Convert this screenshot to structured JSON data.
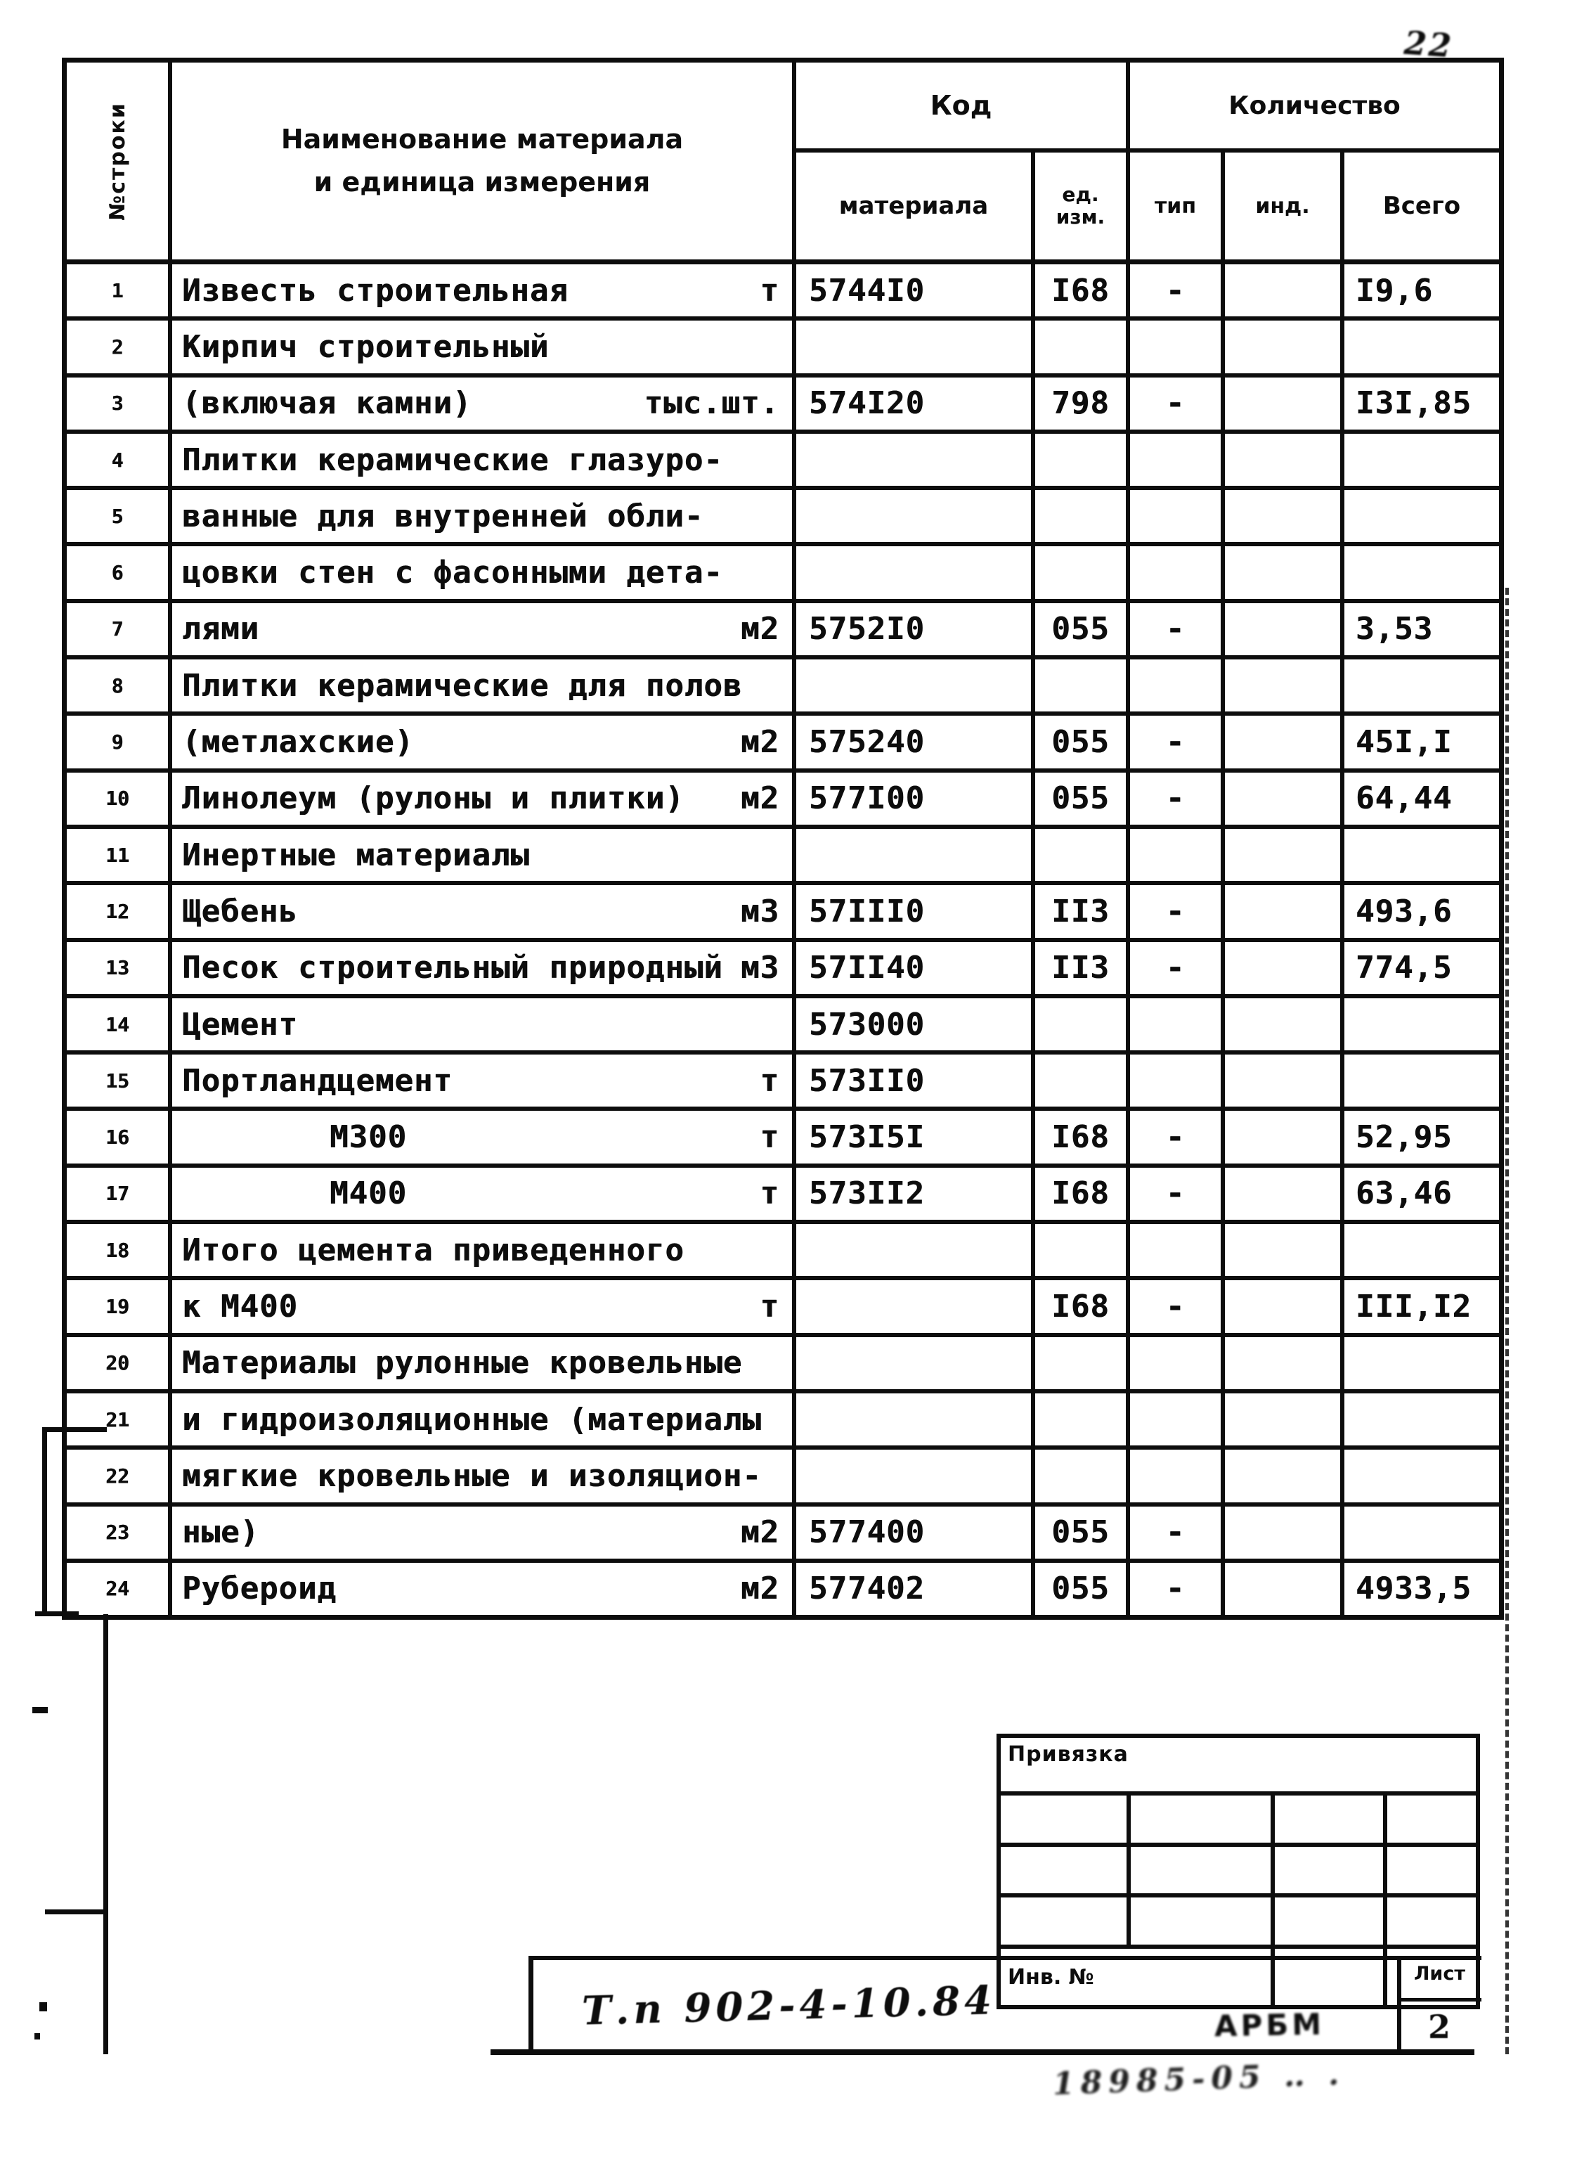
{
  "colors": {
    "ink": "#0d0d0d",
    "paper": "#ffffff"
  },
  "sheet": {
    "page_note_top_right": "22",
    "doc_number_handwritten": "Т.п 902-4-10.84",
    "stamp_text": "АРБМ",
    "bottom_handwritten_note": "18985-05 ‥ ."
  },
  "table": {
    "headers": {
      "row_no_vertical": "№строки",
      "name_line1": "Наименование материала",
      "name_line2": "и единица измерения",
      "code_group": "Код",
      "code_material": "материала",
      "code_unit_line1": "ед.",
      "code_unit_line2": "изм.",
      "qty_group": "Количество",
      "qty_tip": "тип",
      "qty_ind": "инд.",
      "qty_total": "Всего"
    },
    "rows": [
      {
        "no": "1",
        "name": "Известь строительная",
        "unit": "т",
        "code": "5744I0",
        "unit_code": "I68",
        "tip": "-",
        "ind": "",
        "total": "I9,6",
        "indent": false
      },
      {
        "no": "2",
        "name": "Кирпич строительный",
        "unit": "",
        "code": "",
        "unit_code": "",
        "tip": "",
        "ind": "",
        "total": "",
        "indent": false
      },
      {
        "no": "3",
        "name": "(включая камни)",
        "unit": "тыс.шт.",
        "code": "574I20",
        "unit_code": "798",
        "tip": "-",
        "ind": "",
        "total": "I3I,85",
        "indent": false
      },
      {
        "no": "4",
        "name": "Плитки керамические глазуро-",
        "unit": "",
        "code": "",
        "unit_code": "",
        "tip": "",
        "ind": "",
        "total": "",
        "indent": false
      },
      {
        "no": "5",
        "name": "ванные для внутренней обли-",
        "unit": "",
        "code": "",
        "unit_code": "",
        "tip": "",
        "ind": "",
        "total": "",
        "indent": false
      },
      {
        "no": "6",
        "name": "цовки стен с фасонными дета-",
        "unit": "",
        "code": "",
        "unit_code": "",
        "tip": "",
        "ind": "",
        "total": "",
        "indent": false
      },
      {
        "no": "7",
        "name": "лями",
        "unit": "м2",
        "code": "5752I0",
        "unit_code": "055",
        "tip": "-",
        "ind": "",
        "total": "3,53",
        "indent": false
      },
      {
        "no": "8",
        "name": "Плитки керамические для полов",
        "unit": "",
        "code": "",
        "unit_code": "",
        "tip": "",
        "ind": "",
        "total": "",
        "indent": false
      },
      {
        "no": "9",
        "name": "(метлахские)",
        "unit": "м2",
        "code": "575240",
        "unit_code": "055",
        "tip": "-",
        "ind": "",
        "total": "45I,I",
        "indent": false
      },
      {
        "no": "10",
        "name": "Линолеум (рулоны и плитки)",
        "unit": "м2",
        "code": "577I00",
        "unit_code": "055",
        "tip": "-",
        "ind": "",
        "total": "64,44",
        "indent": false
      },
      {
        "no": "11",
        "name": "Инертные материалы",
        "unit": "",
        "code": "",
        "unit_code": "",
        "tip": "",
        "ind": "",
        "total": "",
        "indent": false
      },
      {
        "no": "12",
        "name": "Щебень",
        "unit": "м3",
        "code": "57III0",
        "unit_code": "II3",
        "tip": "-",
        "ind": "",
        "total": "493,6",
        "indent": false
      },
      {
        "no": "13",
        "name": "Песок строительный природный",
        "unit": "м3",
        "code": "57II40",
        "unit_code": "II3",
        "tip": "-",
        "ind": "",
        "total": "774,5",
        "indent": false
      },
      {
        "no": "14",
        "name": "Цемент",
        "unit": "",
        "code": "573000",
        "unit_code": "",
        "tip": "",
        "ind": "",
        "total": "",
        "indent": false
      },
      {
        "no": "15",
        "name": "Портландцемент",
        "unit": "т",
        "code": "573II0",
        "unit_code": "",
        "tip": "",
        "ind": "",
        "total": "",
        "indent": false
      },
      {
        "no": "16",
        "name": "М300",
        "unit": "т",
        "code": "573I5I",
        "unit_code": "I68",
        "tip": "-",
        "ind": "",
        "total": "52,95",
        "indent": true
      },
      {
        "no": "17",
        "name": "М400",
        "unit": "т",
        "code": "573II2",
        "unit_code": "I68",
        "tip": "-",
        "ind": "",
        "total": "63,46",
        "indent": true
      },
      {
        "no": "18",
        "name": "Итого цемента приведенного",
        "unit": "",
        "code": "",
        "unit_code": "",
        "tip": "",
        "ind": "",
        "total": "",
        "indent": false
      },
      {
        "no": "19",
        "name": "к М400",
        "unit": "т",
        "code": "",
        "unit_code": "I68",
        "tip": "-",
        "ind": "",
        "total": "III,I2",
        "indent": false
      },
      {
        "no": "20",
        "name": "Материалы рулонные кровельные",
        "unit": "",
        "code": "",
        "unit_code": "",
        "tip": "",
        "ind": "",
        "total": "",
        "indent": false
      },
      {
        "no": "21",
        "name": "и гидроизоляционные (материалы",
        "unit": "",
        "code": "",
        "unit_code": "",
        "tip": "",
        "ind": "",
        "total": "",
        "indent": false
      },
      {
        "no": "22",
        "name": "мягкие кровельные и изоляцион-",
        "unit": "",
        "code": "",
        "unit_code": "",
        "tip": "",
        "ind": "",
        "total": "",
        "indent": false
      },
      {
        "no": "23",
        "name": "ные)",
        "unit": "м2",
        "code": "577400",
        "unit_code": "055",
        "tip": "-",
        "ind": "",
        "total": "",
        "indent": false
      },
      {
        "no": "24",
        "name": "Рубероид",
        "unit": "м2",
        "code": "577402",
        "unit_code": "055",
        "tip": "-",
        "ind": "",
        "total": "4933,5",
        "indent": false
      }
    ]
  },
  "title_block": {
    "title": "Привязка",
    "inv_label": "Инв. №",
    "sheet_label": "Лист",
    "sheet_number": "2"
  }
}
